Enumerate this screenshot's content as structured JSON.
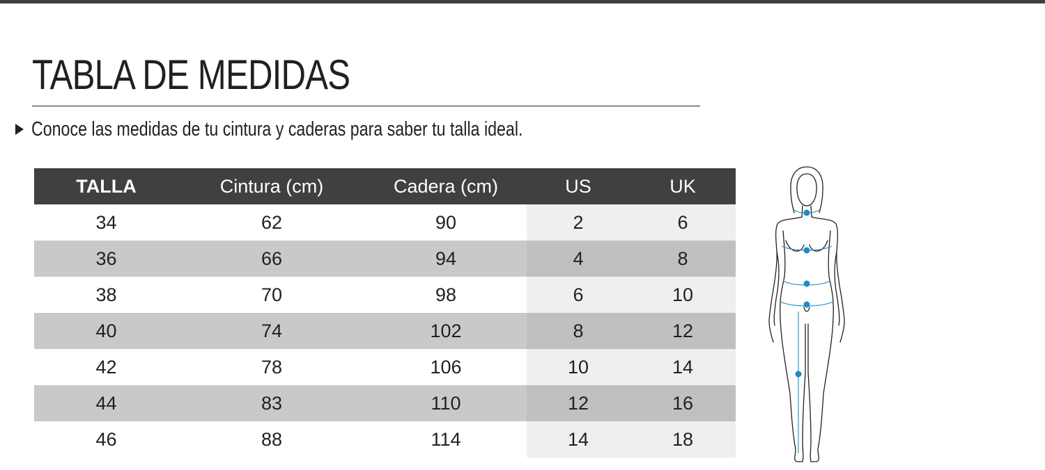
{
  "title": "TABLA DE MEDIDAS",
  "subtitle": "Conoce las medidas de tu cintura y caderas para saber tu talla ideal.",
  "table": {
    "headers": [
      "TALLA",
      "Cintura (cm)",
      "Cadera (cm)",
      "US",
      "UK"
    ],
    "rows": [
      [
        "34",
        "62",
        "90",
        "2",
        "6"
      ],
      [
        "36",
        "66",
        "94",
        "4",
        "8"
      ],
      [
        "38",
        "70",
        "98",
        "6",
        "10"
      ],
      [
        "40",
        "74",
        "102",
        "8",
        "12"
      ],
      [
        "42",
        "78",
        "106",
        "10",
        "14"
      ],
      [
        "44",
        "83",
        "110",
        "12",
        "16"
      ],
      [
        "46",
        "88",
        "114",
        "14",
        "18"
      ]
    ]
  },
  "figure": {
    "icon": "body-measurements-figure-icon",
    "markers": [
      "1",
      "2",
      "3",
      "4",
      "5"
    ],
    "accent_color": "#1a8cc8"
  },
  "colors": {
    "header_bg": "#404040",
    "row_alt_bg": "#c9c9ca",
    "intl_col_bg": "#efeff0"
  }
}
